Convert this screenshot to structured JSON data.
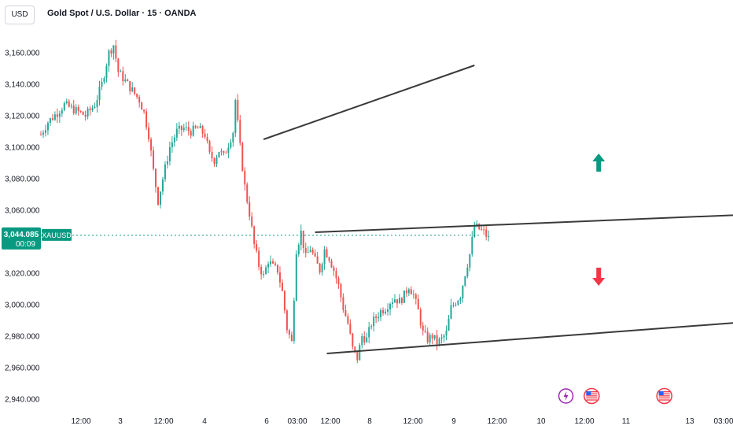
{
  "header": {
    "currency": "USD",
    "title": "Gold Spot / U.S. Dollar · 15 · OANDA"
  },
  "price_badge": {
    "price": "3,044.085",
    "countdown": "00:09",
    "symbol": "XAUUSD",
    "color": "#089981"
  },
  "colors": {
    "up": "#089981",
    "down": "#f23645",
    "candle_up": "#26a69a",
    "candle_down": "#ef5350",
    "trendline": "#3a3a3a",
    "event_us": "#f23645",
    "event_flash": "#9c27b0"
  },
  "chart_data": {
    "type": "candlestick",
    "title": "Gold Spot / U.S. Dollar · 15 · OANDA",
    "symbol": "XAUUSD",
    "ylim": [
      2930,
      3170
    ],
    "y_ticks": [
      "3,160.000",
      "3,140.000",
      "3,120.000",
      "3,100.000",
      "3,080.000",
      "3,060.000",
      "3,040.000",
      "3,020.000",
      "3,000.000",
      "2,980.000",
      "2,960.000",
      "2,940.000"
    ],
    "x_ticks": [
      "12:00",
      "3",
      "12:00",
      "4",
      "6",
      "03:00",
      "12:00",
      "8",
      "12:00",
      "9",
      "12:00",
      "10",
      "12:00",
      "11",
      "13",
      "03:00"
    ],
    "last_price": 3044.085,
    "price_path": [
      [
        0,
        3108
      ],
      [
        3,
        3116
      ],
      [
        7,
        3122
      ],
      [
        10,
        3127
      ],
      [
        14,
        3124
      ],
      [
        19,
        3120
      ],
      [
        23,
        3127
      ],
      [
        26,
        3140
      ],
      [
        29,
        3160
      ],
      [
        31,
        3165
      ],
      [
        33,
        3148
      ],
      [
        36,
        3142
      ],
      [
        39,
        3136
      ],
      [
        42,
        3130
      ],
      [
        44,
        3122
      ],
      [
        46,
        3108
      ],
      [
        48,
        3085
      ],
      [
        50,
        3066
      ],
      [
        52,
        3080
      ],
      [
        55,
        3100
      ],
      [
        58,
        3110
      ],
      [
        61,
        3112
      ],
      [
        64,
        3110
      ],
      [
        67,
        3112
      ],
      [
        70,
        3108
      ],
      [
        72,
        3095
      ],
      [
        74,
        3092
      ],
      [
        76,
        3098
      ],
      [
        78,
        3094
      ],
      [
        80,
        3102
      ],
      [
        82,
        3110
      ],
      [
        83,
        3130
      ],
      [
        85,
        3100
      ],
      [
        87,
        3075
      ],
      [
        89,
        3058
      ],
      [
        91,
        3038
      ],
      [
        93,
        3025
      ],
      [
        95,
        3018
      ],
      [
        97,
        3028
      ],
      [
        99,
        3024
      ],
      [
        101,
        3022
      ],
      [
        103,
        3008
      ],
      [
        105,
        2985
      ],
      [
        107,
        2976
      ],
      [
        109,
        3035
      ],
      [
        111,
        3046
      ],
      [
        113,
        3030
      ],
      [
        115,
        3036
      ],
      [
        117,
        3028
      ],
      [
        119,
        3022
      ],
      [
        121,
        3035
      ],
      [
        123,
        3030
      ],
      [
        125,
        3022
      ],
      [
        127,
        3012
      ],
      [
        129,
        2998
      ],
      [
        131,
        2988
      ],
      [
        133,
        2972
      ],
      [
        135,
        2966
      ],
      [
        137,
        2980
      ],
      [
        139,
        2978
      ],
      [
        141,
        2988
      ],
      [
        143,
        2992
      ],
      [
        145,
        2996
      ],
      [
        147,
        2998
      ],
      [
        149,
        3002
      ],
      [
        151,
        3004
      ],
      [
        153,
        3002
      ],
      [
        155,
        3006
      ],
      [
        157,
        3012
      ],
      [
        159,
        3006
      ],
      [
        161,
        2996
      ],
      [
        163,
        2982
      ],
      [
        165,
        2978
      ],
      [
        167,
        2980
      ],
      [
        169,
        2976
      ],
      [
        171,
        2978
      ],
      [
        173,
        2982
      ],
      [
        175,
        2998
      ],
      [
        177,
        3002
      ],
      [
        179,
        3006
      ],
      [
        181,
        3020
      ],
      [
        183,
        3032
      ],
      [
        185,
        3050
      ],
      [
        187,
        3048
      ],
      [
        189,
        3046
      ],
      [
        191,
        3042
      ]
    ],
    "trendlines": [
      {
        "x": [
          95,
          185
        ],
        "y": [
          3105,
          3152
        ]
      },
      {
        "x": [
          117,
          298
        ],
        "y": [
          3046,
          3057
        ]
      },
      {
        "x": [
          122,
          301
        ],
        "y": [
          2969,
          2989
        ]
      }
    ],
    "annotations": [
      {
        "type": "arrow-up",
        "x": 238,
        "y": 3090
      },
      {
        "type": "arrow-down",
        "x": 238,
        "y": 3018
      }
    ],
    "event_markers": [
      {
        "type": "flash",
        "x": 224
      },
      {
        "type": "us",
        "x": 235
      },
      {
        "type": "us",
        "x": 266
      },
      {
        "type": "us",
        "x": 306
      },
      {
        "type": "us",
        "x": 310
      }
    ],
    "grid": false,
    "legend": "none"
  }
}
